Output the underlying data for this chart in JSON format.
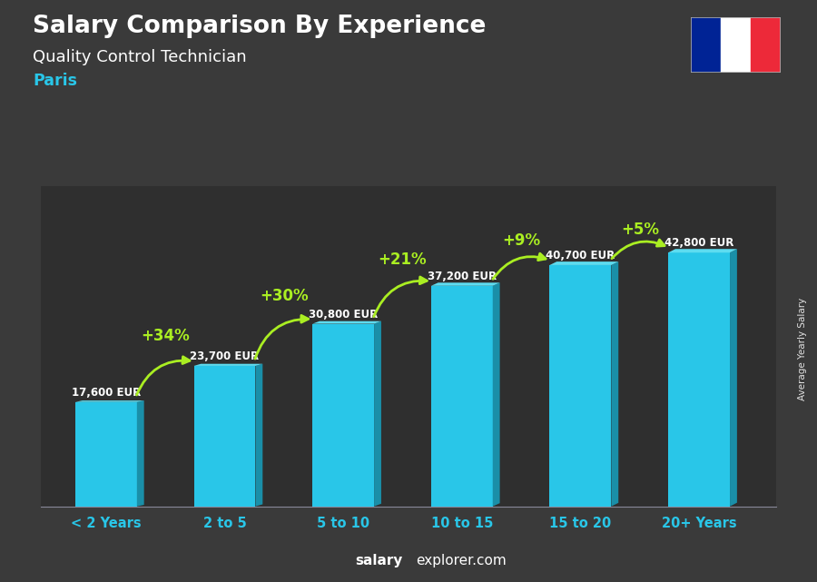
{
  "title": "Salary Comparison By Experience",
  "subtitle": "Quality Control Technician",
  "city": "Paris",
  "categories": [
    "< 2 Years",
    "2 to 5",
    "5 to 10",
    "10 to 15",
    "15 to 20",
    "20+ Years"
  ],
  "values": [
    17600,
    23700,
    30800,
    37200,
    40700,
    42800
  ],
  "value_labels": [
    "17,600 EUR",
    "23,700 EUR",
    "30,800 EUR",
    "37,200 EUR",
    "40,700 EUR",
    "42,800 EUR"
  ],
  "pct_changes": [
    "+34%",
    "+30%",
    "+21%",
    "+9%",
    "+5%"
  ],
  "bar_color_main": "#29c6e8",
  "bar_color_dark": "#1a8fa8",
  "bar_color_top": "#5ddcf0",
  "bg_color": "#3a3a3a",
  "title_color": "#ffffff",
  "subtitle_color": "#ffffff",
  "city_color": "#29c6e8",
  "value_label_color": "#ffffff",
  "pct_color": "#aaee22",
  "category_color": "#29c6e8",
  "footer_salary_color": "#ffffff",
  "footer_explorer_color": "#ffffff",
  "ylabel": "Average Yearly Salary",
  "ylim": [
    0,
    54000
  ],
  "flag_blue": "#002395",
  "flag_white": "#ffffff",
  "flag_red": "#ED2939"
}
